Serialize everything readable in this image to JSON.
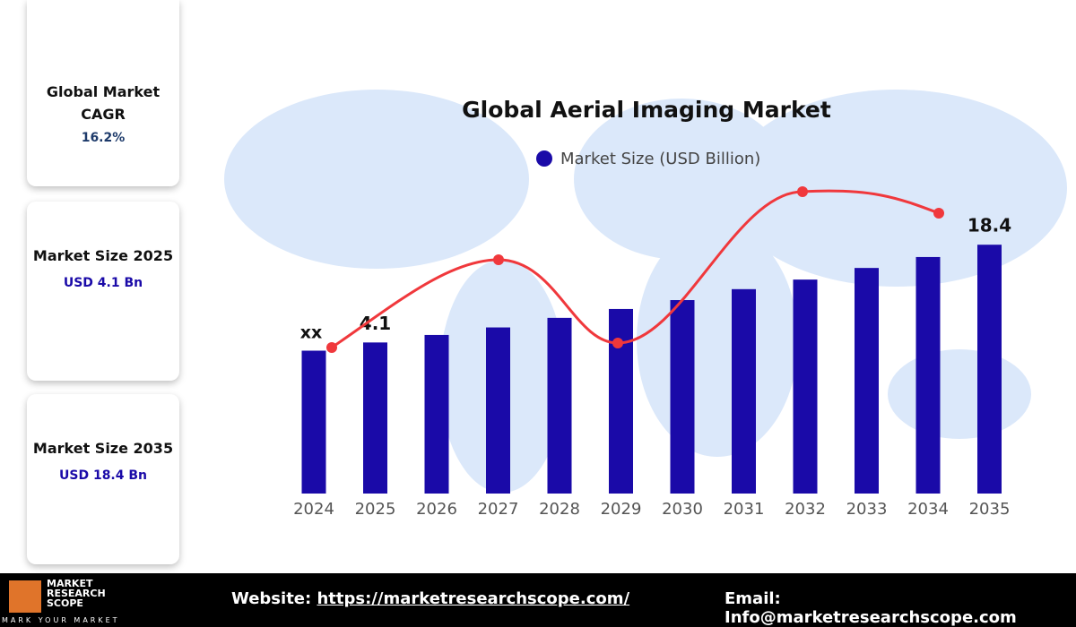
{
  "sidebar": [
    {
      "title": "Global Market CAGR",
      "value": "16.2%"
    },
    {
      "title": "Market Size 2025",
      "value": "USD 4.1 Bn"
    },
    {
      "title": "Market Size 2035",
      "value": "USD 18.4 Bn"
    }
  ],
  "chart_data": {
    "type": "bar",
    "title": "Global Aerial Imaging Market",
    "categories": [
      "2024",
      "2025",
      "2026",
      "2027",
      "2028",
      "2029",
      "2030",
      "2031",
      "2032",
      "2033",
      "2034",
      "2035"
    ],
    "series": [
      {
        "name": "Market Size (USD Billion)",
        "color": "#1a0aa8",
        "values": [
          2.9,
          4.1,
          5.2,
          6.3,
          7.7,
          9.0,
          10.3,
          11.9,
          13.3,
          15.0,
          16.6,
          18.4
        ]
      }
    ],
    "labeled_points": [
      1,
      11
    ],
    "annotation": "xx",
    "ylim": [
      -18,
      20
    ]
  },
  "footer": {
    "logo_top": "MARKET",
    "logo_mid": "RESEARCH",
    "logo_bottom": "SCOPE",
    "tagline": "MARK YOUR MARKET",
    "website_label": "Website:",
    "website": "https://marketresearchscope.com/",
    "email_label": "Email:",
    "email": "Info@marketresearchscope.com"
  }
}
